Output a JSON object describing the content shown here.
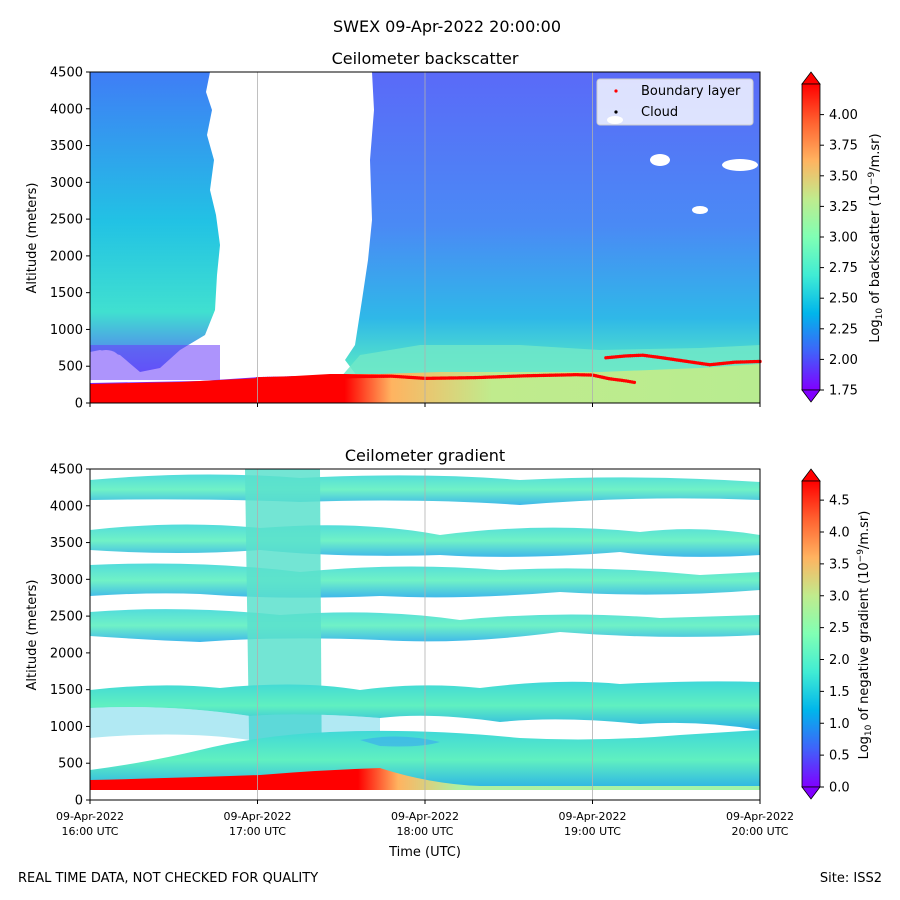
{
  "figure": {
    "suptitle": "SWEX 09-Apr-2022 20:00:00",
    "footer_left": "REAL TIME DATA, NOT CHECKED FOR QUALITY",
    "footer_right": "Site: ISS2"
  },
  "colors": {
    "colormap": [
      "#8000ff",
      "#4062fa",
      "#00b5eb",
      "#40ecd4",
      "#80ffb4",
      "#c0eb8d",
      "#ffb360",
      "#ff6230",
      "#ff0000"
    ],
    "boundary_layer": "#ff0000",
    "cloud": "#000000",
    "grid": "#b0b0b0"
  },
  "chart_data": [
    {
      "type": "heatmap",
      "title": "Ceilometer backscatter",
      "ylabel": "Altitude (meters)",
      "xlabel": "",
      "ylim": [
        0,
        4500
      ],
      "yticks": [
        0,
        500,
        1000,
        1500,
        2000,
        2500,
        3000,
        3500,
        4000,
        4500
      ],
      "xlim": [
        "09-Apr-2022 16:00 UTC",
        "09-Apr-2022 20:00 UTC"
      ],
      "grid": "x",
      "legend": {
        "placement": "upper right",
        "entries": [
          {
            "label": "Boundary layer",
            "color": "#ff0000"
          },
          {
            "label": "Cloud",
            "color": "#000000"
          }
        ]
      },
      "colorbar": {
        "label": "Log10 of backscatter (10^-9/m.sr)",
        "vmin": 1.75,
        "vmax": 4.25,
        "ticks": [
          "4.00",
          "3.75",
          "3.50",
          "3.25",
          "3.00",
          "2.75",
          "2.50",
          "2.25",
          "2.00",
          "1.75"
        ],
        "tick_values": [
          4.0,
          3.75,
          3.5,
          3.25,
          3.0,
          2.75,
          2.5,
          2.25,
          2.0,
          1.75
        ]
      },
      "series": [
        {
          "name": "Boundary layer",
          "points": [
            [
              17.0,
              330
            ],
            [
              17.3,
              345
            ],
            [
              17.6,
              360
            ],
            [
              17.8,
              365
            ],
            [
              18.0,
              335
            ],
            [
              18.3,
              345
            ],
            [
              18.6,
              370
            ],
            [
              18.9,
              385
            ],
            [
              19.0,
              380
            ],
            [
              19.1,
              330
            ],
            [
              19.2,
              300
            ],
            [
              19.25,
              280
            ],
            [
              19.08,
              615
            ],
            [
              19.2,
              640
            ],
            [
              19.3,
              650
            ],
            [
              19.4,
              620
            ],
            [
              19.55,
              570
            ],
            [
              19.7,
              520
            ],
            [
              19.85,
              555
            ],
            [
              20.0,
              565
            ]
          ]
        }
      ]
    },
    {
      "type": "heatmap",
      "title": "Ceilometer gradient",
      "ylabel": "Altitude (meters)",
      "xlabel": "Time (UTC)",
      "ylim": [
        0,
        4500
      ],
      "yticks": [
        0,
        500,
        1000,
        1500,
        2000,
        2500,
        3000,
        3500,
        4000,
        4500
      ],
      "xticks": [
        {
          "date": "09-Apr-2022",
          "time": "16:00 UTC"
        },
        {
          "date": "09-Apr-2022",
          "time": "17:00 UTC"
        },
        {
          "date": "09-Apr-2022",
          "time": "18:00 UTC"
        },
        {
          "date": "09-Apr-2022",
          "time": "19:00 UTC"
        },
        {
          "date": "09-Apr-2022",
          "time": "20:00 UTC"
        }
      ],
      "grid": "x",
      "colorbar": {
        "label": "Log10 of negative gradient (10^-9/m.sr)",
        "vmin": 0.0,
        "vmax": 4.8,
        "ticks": [
          "4.5",
          "4.0",
          "3.5",
          "3.0",
          "2.5",
          "2.0",
          "1.5",
          "1.0",
          "0.5",
          "0.0"
        ],
        "tick_values": [
          4.5,
          4.0,
          3.5,
          3.0,
          2.5,
          2.0,
          1.5,
          1.0,
          0.5,
          0.0
        ]
      }
    }
  ]
}
